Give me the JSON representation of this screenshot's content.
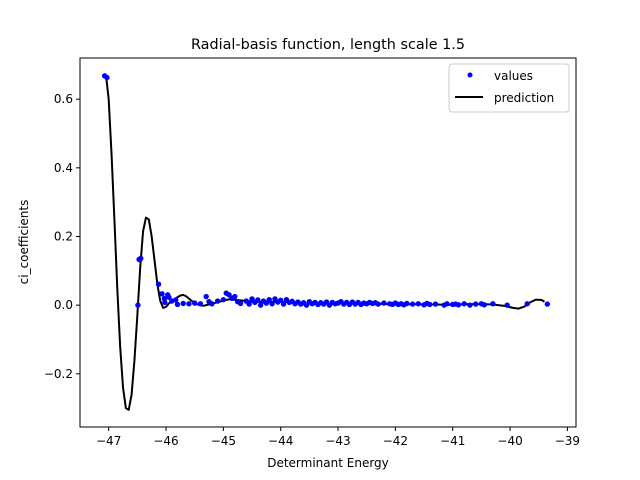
{
  "chart_data": {
    "type": "scatter",
    "title": "Radial-basis function, length scale 1.5",
    "xlabel": "Determinant Energy",
    "ylabel": "ci_coefficients",
    "xlim": [
      -47.5,
      -38.85
    ],
    "ylim": [
      -0.355,
      0.72
    ],
    "x_ticks": [
      -47,
      -46,
      -45,
      -44,
      -43,
      -42,
      -41,
      -40,
      -39
    ],
    "x_tick_labels": [
      "−47",
      "−46",
      "−45",
      "−44",
      "−43",
      "−42",
      "−41",
      "−40",
      "−39"
    ],
    "y_ticks": [
      -0.2,
      0.0,
      0.2,
      0.4,
      0.6
    ],
    "y_tick_labels": [
      "−0.2",
      "0.0",
      "0.2",
      "0.4",
      "0.6"
    ],
    "grid": false,
    "legend_position": "upper right",
    "series": [
      {
        "name": "values",
        "kind": "scatter",
        "color": "#0000ff",
        "points": [
          [
            -47.07,
            0.668
          ],
          [
            -47.03,
            0.663
          ],
          [
            -46.47,
            0.133
          ],
          [
            -46.44,
            0.136
          ],
          [
            -46.49,
            0.0
          ],
          [
            -46.13,
            0.061
          ],
          [
            -46.07,
            0.033
          ],
          [
            -45.97,
            0.03
          ],
          [
            -46.03,
            0.019
          ],
          [
            -46.02,
            0.008
          ],
          [
            -45.95,
            0.023
          ],
          [
            -45.9,
            0.012
          ],
          [
            -45.8,
            0.002
          ],
          [
            -45.83,
            0.015
          ],
          [
            -45.7,
            0.005
          ],
          [
            -45.6,
            0.004
          ],
          [
            -45.5,
            0.006
          ],
          [
            -45.4,
            0.004
          ],
          [
            -45.3,
            0.025
          ],
          [
            -45.25,
            0.01
          ],
          [
            -45.2,
            0.004
          ],
          [
            -45.1,
            0.012
          ],
          [
            -45.0,
            0.016
          ],
          [
            -44.95,
            0.035
          ],
          [
            -44.9,
            0.03
          ],
          [
            -44.85,
            0.02
          ],
          [
            -44.8,
            0.025
          ],
          [
            -44.75,
            0.01
          ],
          [
            -44.7,
            0.005
          ],
          [
            -44.6,
            0.012
          ],
          [
            -44.55,
            0.003
          ],
          [
            -44.5,
            0.018
          ],
          [
            -44.45,
            0.008
          ],
          [
            -44.4,
            0.015
          ],
          [
            -44.35,
            0.0
          ],
          [
            -44.3,
            0.012
          ],
          [
            -44.25,
            0.006
          ],
          [
            -44.2,
            0.016
          ],
          [
            -44.15,
            0.004
          ],
          [
            -44.1,
            0.018
          ],
          [
            -44.05,
            0.009
          ],
          [
            -44.0,
            0.014
          ],
          [
            -43.95,
            0.003
          ],
          [
            -43.9,
            0.016
          ],
          [
            -43.85,
            0.008
          ],
          [
            -43.8,
            0.011
          ],
          [
            -43.75,
            0.004
          ],
          [
            -43.7,
            0.009
          ],
          [
            -43.65,
            0.003
          ],
          [
            -43.6,
            0.007
          ],
          [
            -43.55,
            0.0
          ],
          [
            -43.5,
            0.01
          ],
          [
            -43.45,
            0.004
          ],
          [
            -43.4,
            0.008
          ],
          [
            -43.35,
            0.002
          ],
          [
            -43.3,
            0.007
          ],
          [
            -43.25,
            0.003
          ],
          [
            -43.2,
            0.009
          ],
          [
            -43.15,
            0.0
          ],
          [
            -43.1,
            0.008
          ],
          [
            -43.05,
            0.004
          ],
          [
            -43.0,
            0.006
          ],
          [
            -42.95,
            0.01
          ],
          [
            -42.9,
            0.003
          ],
          [
            -42.85,
            0.008
          ],
          [
            -42.8,
            0.002
          ],
          [
            -42.75,
            0.009
          ],
          [
            -42.7,
            0.003
          ],
          [
            -42.65,
            0.008
          ],
          [
            -42.6,
            0.002
          ],
          [
            -42.55,
            0.006
          ],
          [
            -42.5,
            0.004
          ],
          [
            -42.45,
            0.008
          ],
          [
            -42.4,
            0.005
          ],
          [
            -42.35,
            0.007
          ],
          [
            -42.3,
            0.003
          ],
          [
            -42.2,
            0.006
          ],
          [
            -42.1,
            0.004
          ],
          [
            -42.05,
            0.002
          ],
          [
            -42.0,
            0.006
          ],
          [
            -41.95,
            0.002
          ],
          [
            -41.9,
            0.004
          ],
          [
            -41.85,
            0.001
          ],
          [
            -41.8,
            0.005
          ],
          [
            -41.7,
            0.003
          ],
          [
            -41.6,
            0.004
          ],
          [
            -41.5,
            0.001
          ],
          [
            -41.45,
            0.005
          ],
          [
            -41.4,
            0.002
          ],
          [
            -41.3,
            0.003
          ],
          [
            -41.15,
            0.0
          ],
          [
            -41.1,
            0.004
          ],
          [
            -41.0,
            0.002
          ],
          [
            -40.95,
            0.003
          ],
          [
            -40.9,
            0.001
          ],
          [
            -40.8,
            0.004
          ],
          [
            -40.7,
            0.0
          ],
          [
            -40.6,
            0.003
          ],
          [
            -40.5,
            0.004
          ],
          [
            -40.45,
            0.001
          ],
          [
            -40.3,
            0.004
          ],
          [
            -40.05,
            0.0
          ],
          [
            -39.7,
            0.004
          ],
          [
            -39.35,
            0.003
          ]
        ]
      },
      {
        "name": "prediction",
        "kind": "line",
        "color": "#000000",
        "points": [
          [
            -47.08,
            0.67
          ],
          [
            -47.04,
            0.66
          ],
          [
            -47.0,
            0.6
          ],
          [
            -46.95,
            0.44
          ],
          [
            -46.9,
            0.25
          ],
          [
            -46.85,
            0.05
          ],
          [
            -46.8,
            -0.12
          ],
          [
            -46.75,
            -0.24
          ],
          [
            -46.7,
            -0.3
          ],
          [
            -46.65,
            -0.305
          ],
          [
            -46.6,
            -0.26
          ],
          [
            -46.55,
            -0.16
          ],
          [
            -46.5,
            -0.03
          ],
          [
            -46.45,
            0.11
          ],
          [
            -46.4,
            0.215
          ],
          [
            -46.35,
            0.255
          ],
          [
            -46.3,
            0.25
          ],
          [
            -46.25,
            0.2
          ],
          [
            -46.2,
            0.13
          ],
          [
            -46.15,
            0.06
          ],
          [
            -46.1,
            0.012
          ],
          [
            -46.05,
            -0.008
          ],
          [
            -46.0,
            -0.005
          ],
          [
            -45.95,
            0.005
          ],
          [
            -45.85,
            0.018
          ],
          [
            -45.75,
            0.028
          ],
          [
            -45.7,
            0.03
          ],
          [
            -45.65,
            0.026
          ],
          [
            -45.55,
            0.012
          ],
          [
            -45.45,
            0.002
          ],
          [
            -45.35,
            -0.002
          ],
          [
            -45.2,
            0.004
          ],
          [
            -45.0,
            0.013
          ],
          [
            -44.9,
            0.017
          ],
          [
            -44.7,
            0.014
          ],
          [
            -44.5,
            0.01
          ],
          [
            -44.3,
            0.009
          ],
          [
            -44.1,
            0.01
          ],
          [
            -43.9,
            0.009
          ],
          [
            -43.7,
            0.006
          ],
          [
            -43.5,
            0.004
          ],
          [
            -43.3,
            0.004
          ],
          [
            -43.1,
            0.004
          ],
          [
            -42.9,
            0.005
          ],
          [
            -42.7,
            0.005
          ],
          [
            -42.5,
            0.005
          ],
          [
            -42.3,
            0.004
          ],
          [
            -42.1,
            0.003
          ],
          [
            -41.9,
            0.002
          ],
          [
            -41.7,
            0.003
          ],
          [
            -41.5,
            0.002
          ],
          [
            -41.3,
            0.002
          ],
          [
            -41.1,
            0.001
          ],
          [
            -40.9,
            0.002
          ],
          [
            -40.7,
            0.003
          ],
          [
            -40.5,
            0.003
          ],
          [
            -40.3,
            0.002
          ],
          [
            -40.1,
            -0.002
          ],
          [
            -39.95,
            -0.008
          ],
          [
            -39.85,
            -0.01
          ],
          [
            -39.75,
            -0.004
          ],
          [
            -39.65,
            0.008
          ],
          [
            -39.55,
            0.016
          ],
          [
            -39.45,
            0.015
          ],
          [
            -39.4,
            0.01
          ]
        ]
      }
    ]
  }
}
